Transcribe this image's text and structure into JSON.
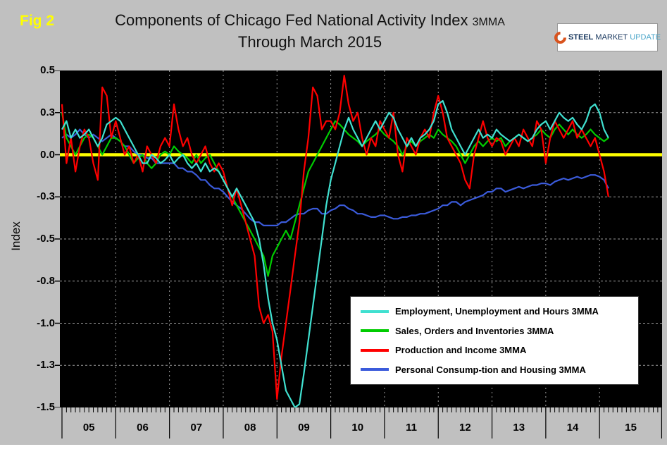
{
  "header": {
    "fig_label": "Fig 2",
    "title_main": "Components of Chicago Fed National Activity Index",
    "title_mma": "3MMA",
    "title_sub": "Through March 2015"
  },
  "logo": {
    "steel": "STEEL",
    "market": "MARKET",
    "update": "UPDATE"
  },
  "colors": {
    "background": "#C0C0C0",
    "plot_background": "#000000",
    "grid": "#9A9A9A",
    "zero_line": "#FFFF00",
    "fig_label": "#FFFF00",
    "employment": "#40E0D0",
    "sales": "#00CC00",
    "production": "#FF0000",
    "consumption": "#3B5BDB"
  },
  "chart_data": {
    "type": "line",
    "title": "Components of Chicago Fed National Activity Index 3MMA Through March 2015",
    "ylabel": "Index",
    "xlabel": "",
    "ylim": [
      -1.5,
      0.5
    ],
    "grid": true,
    "legend_position": "inside lower right",
    "frequency": "monthly",
    "x_start": "Jan 2005",
    "x_end": "Mar 2015",
    "x_year_labels": [
      "05",
      "06",
      "07",
      "08",
      "09",
      "10",
      "11",
      "12",
      "13",
      "14",
      "15"
    ],
    "y_ticks": [
      {
        "value": 0.5,
        "label": "0.5"
      },
      {
        "value": 0.25,
        "label": "0.3"
      },
      {
        "value": 0.0,
        "label": "0.0"
      },
      {
        "value": -0.25,
        "label": "-0.3"
      },
      {
        "value": -0.5,
        "label": "-0.5"
      },
      {
        "value": -0.75,
        "label": "-0.8"
      },
      {
        "value": -1.0,
        "label": "-1.0"
      },
      {
        "value": -1.25,
        "label": "-1.3"
      },
      {
        "value": -1.5,
        "label": "-1.5"
      }
    ],
    "zero_line_value": 0.0,
    "series": [
      {
        "name": "Employment, Unemployment and Hours 3MMA",
        "color": "#40E0D0",
        "values": [
          0.15,
          0.2,
          0.1,
          0.15,
          0.1,
          0.12,
          0.15,
          0.1,
          0.05,
          0.1,
          0.18,
          0.2,
          0.22,
          0.2,
          0.15,
          0.1,
          0.05,
          0.0,
          -0.05,
          -0.05,
          0.0,
          -0.02,
          -0.05,
          -0.03,
          0.0,
          -0.05,
          -0.02,
          0.0,
          -0.05,
          -0.08,
          -0.05,
          -0.1,
          -0.05,
          -0.1,
          -0.08,
          -0.1,
          -0.15,
          -0.2,
          -0.25,
          -0.2,
          -0.25,
          -0.3,
          -0.35,
          -0.4,
          -0.5,
          -0.65,
          -0.85,
          -1.0,
          -1.1,
          -1.25,
          -1.4,
          -1.45,
          -1.5,
          -1.48,
          -1.3,
          -1.1,
          -0.9,
          -0.7,
          -0.5,
          -0.3,
          -0.15,
          -0.05,
          0.05,
          0.15,
          0.22,
          0.15,
          0.1,
          0.05,
          0.1,
          0.15,
          0.2,
          0.15,
          0.2,
          0.25,
          0.22,
          0.15,
          0.1,
          0.05,
          0.1,
          0.05,
          0.1,
          0.12,
          0.15,
          0.2,
          0.3,
          0.32,
          0.25,
          0.15,
          0.1,
          0.05,
          0.0,
          0.05,
          0.1,
          0.15,
          0.1,
          0.12,
          0.1,
          0.15,
          0.12,
          0.1,
          0.08,
          0.1,
          0.12,
          0.1,
          0.08,
          0.1,
          0.15,
          0.18,
          0.2,
          0.15,
          0.2,
          0.25,
          0.22,
          0.2,
          0.22,
          0.18,
          0.15,
          0.2,
          0.28,
          0.3,
          0.25,
          0.15,
          0.1
        ]
      },
      {
        "name": "Sales, Orders and Inventories 3MMA",
        "color": "#00CC00",
        "values": [
          0.25,
          0.1,
          0.05,
          0.0,
          0.05,
          0.1,
          0.12,
          0.1,
          0.05,
          0.0,
          0.05,
          0.1,
          0.1,
          0.08,
          0.05,
          0.0,
          -0.05,
          -0.02,
          0.0,
          -0.05,
          -0.08,
          -0.05,
          0.0,
          0.02,
          0.0,
          0.05,
          0.02,
          0.0,
          -0.02,
          -0.05,
          0.0,
          -0.05,
          -0.02,
          0.0,
          -0.05,
          -0.1,
          -0.15,
          -0.2,
          -0.25,
          -0.3,
          -0.35,
          -0.4,
          -0.45,
          -0.5,
          -0.55,
          -0.6,
          -0.72,
          -0.6,
          -0.55,
          -0.5,
          -0.45,
          -0.5,
          -0.4,
          -0.3,
          -0.2,
          -0.1,
          -0.05,
          0.0,
          0.05,
          0.1,
          0.15,
          0.2,
          0.18,
          0.15,
          0.12,
          0.1,
          0.08,
          0.05,
          0.08,
          0.1,
          0.12,
          0.15,
          0.12,
          0.1,
          0.08,
          0.05,
          0.0,
          0.05,
          0.08,
          0.05,
          0.08,
          0.1,
          0.12,
          0.1,
          0.15,
          0.12,
          0.1,
          0.08,
          0.05,
          0.0,
          -0.05,
          0.0,
          0.05,
          0.08,
          0.05,
          0.08,
          0.1,
          0.08,
          0.1,
          0.05,
          0.08,
          0.1,
          0.12,
          0.1,
          0.08,
          0.1,
          0.12,
          0.15,
          0.12,
          0.1,
          0.15,
          0.18,
          0.15,
          0.12,
          0.15,
          0.12,
          0.1,
          0.12,
          0.15,
          0.12,
          0.1,
          0.08,
          0.1
        ]
      },
      {
        "name": "Production and Income 3MMA",
        "color": "#FF0000",
        "values": [
          0.3,
          -0.05,
          0.1,
          -0.1,
          0.05,
          0.15,
          0.1,
          -0.05,
          -0.15,
          0.4,
          0.35,
          0.1,
          0.2,
          0.1,
          0.0,
          0.05,
          -0.05,
          0.0,
          -0.1,
          0.05,
          0.0,
          -0.05,
          0.05,
          0.1,
          0.05,
          0.3,
          0.15,
          0.05,
          0.1,
          0.0,
          -0.05,
          0.0,
          0.05,
          -0.05,
          -0.1,
          -0.05,
          -0.1,
          -0.2,
          -0.3,
          -0.2,
          -0.3,
          -0.4,
          -0.5,
          -0.6,
          -0.9,
          -1.0,
          -0.95,
          -1.05,
          -1.45,
          -1.2,
          -1.0,
          -0.8,
          -0.6,
          -0.4,
          -0.1,
          0.1,
          0.4,
          0.35,
          0.15,
          0.2,
          0.2,
          0.15,
          0.25,
          0.47,
          0.3,
          0.2,
          0.25,
          0.1,
          0.0,
          0.1,
          0.05,
          0.2,
          0.15,
          0.1,
          0.25,
          0.0,
          -0.1,
          0.1,
          0.05,
          0.0,
          0.1,
          0.15,
          0.1,
          0.25,
          0.35,
          0.25,
          0.1,
          0.05,
          0.0,
          -0.05,
          -0.15,
          -0.2,
          0.0,
          0.1,
          0.2,
          0.1,
          0.05,
          0.1,
          0.08,
          0.0,
          0.05,
          0.1,
          0.05,
          0.15,
          0.1,
          0.05,
          0.2,
          0.15,
          -0.05,
          0.1,
          0.2,
          0.15,
          0.1,
          0.15,
          0.2,
          0.1,
          0.15,
          0.1,
          0.05,
          0.1,
          0.0,
          -0.1,
          -0.25
        ]
      },
      {
        "name": "Personal Consump-tion and Housing 3MMA",
        "color": "#3B5BDB",
        "values": [
          0.1,
          0.12,
          0.1,
          0.12,
          0.15,
          0.12,
          0.1,
          0.12,
          0.1,
          0.08,
          0.1,
          0.12,
          0.1,
          0.08,
          0.05,
          0.05,
          0.02,
          0.0,
          0.0,
          -0.02,
          -0.02,
          -0.05,
          -0.05,
          -0.05,
          -0.05,
          -0.05,
          -0.08,
          -0.08,
          -0.1,
          -0.1,
          -0.12,
          -0.15,
          -0.15,
          -0.18,
          -0.2,
          -0.2,
          -0.22,
          -0.25,
          -0.28,
          -0.3,
          -0.32,
          -0.35,
          -0.38,
          -0.4,
          -0.4,
          -0.42,
          -0.42,
          -0.42,
          -0.42,
          -0.4,
          -0.4,
          -0.38,
          -0.36,
          -0.35,
          -0.35,
          -0.33,
          -0.32,
          -0.32,
          -0.35,
          -0.35,
          -0.33,
          -0.32,
          -0.3,
          -0.3,
          -0.32,
          -0.33,
          -0.35,
          -0.35,
          -0.36,
          -0.37,
          -0.37,
          -0.36,
          -0.36,
          -0.37,
          -0.38,
          -0.38,
          -0.37,
          -0.37,
          -0.36,
          -0.36,
          -0.35,
          -0.35,
          -0.34,
          -0.33,
          -0.32,
          -0.3,
          -0.3,
          -0.28,
          -0.28,
          -0.3,
          -0.28,
          -0.27,
          -0.26,
          -0.25,
          -0.24,
          -0.22,
          -0.22,
          -0.2,
          -0.2,
          -0.22,
          -0.21,
          -0.2,
          -0.19,
          -0.2,
          -0.19,
          -0.18,
          -0.18,
          -0.17,
          -0.17,
          -0.18,
          -0.16,
          -0.15,
          -0.14,
          -0.15,
          -0.14,
          -0.13,
          -0.14,
          -0.13,
          -0.12,
          -0.12,
          -0.13,
          -0.15,
          -0.2
        ]
      }
    ]
  }
}
